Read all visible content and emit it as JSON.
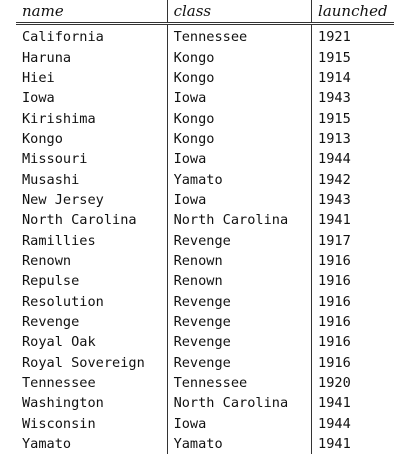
{
  "table": {
    "headers": [
      "name",
      "class",
      "launched"
    ],
    "rows": [
      [
        "California",
        "Tennessee",
        "1921"
      ],
      [
        "Haruna",
        "Kongo",
        "1915"
      ],
      [
        "Hiei",
        "Kongo",
        "1914"
      ],
      [
        "Iowa",
        "Iowa",
        "1943"
      ],
      [
        "Kirishima",
        "Kongo",
        "1915"
      ],
      [
        "Kongo",
        "Kongo",
        "1913"
      ],
      [
        "Missouri",
        "Iowa",
        "1944"
      ],
      [
        "Musashi",
        "Yamato",
        "1942"
      ],
      [
        "New Jersey",
        "Iowa",
        "1943"
      ],
      [
        "North Carolina",
        "North Carolina",
        "1941"
      ],
      [
        "Ramillies",
        "Revenge",
        "1917"
      ],
      [
        "Renown",
        "Renown",
        "1916"
      ],
      [
        "Repulse",
        "Renown",
        "1916"
      ],
      [
        "Resolution",
        "Revenge",
        "1916"
      ],
      [
        "Revenge",
        "Revenge",
        "1916"
      ],
      [
        "Royal Oak",
        "Revenge",
        "1916"
      ],
      [
        "Royal Sovereign",
        "Revenge",
        "1916"
      ],
      [
        "Tennessee",
        "Tennessee",
        "1920"
      ],
      [
        "Washington",
        "North Carolina",
        "1941"
      ],
      [
        "Wisconsin",
        "Iowa",
        "1944"
      ],
      [
        "Yamato",
        "Yamato",
        "1941"
      ]
    ]
  }
}
